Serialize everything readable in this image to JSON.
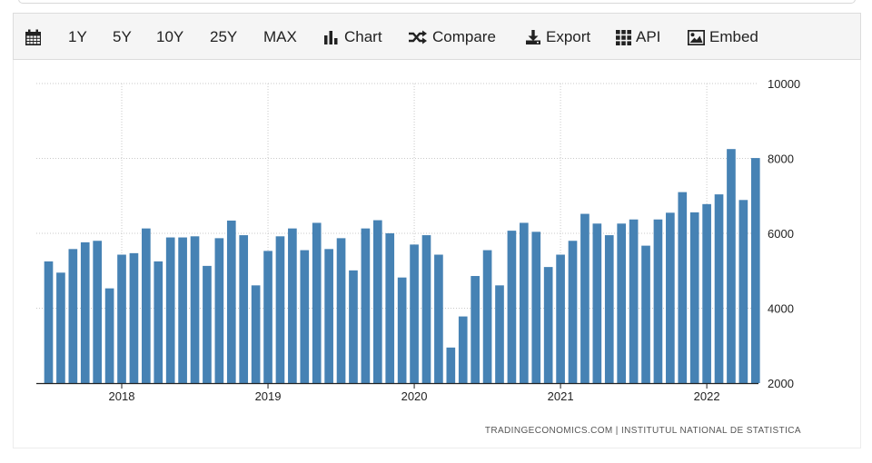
{
  "toolbar": {
    "calendar_icon": "calendar-icon",
    "ranges": [
      "1Y",
      "5Y",
      "10Y",
      "25Y",
      "MAX"
    ],
    "chart_label": "Chart",
    "compare_label": "Compare",
    "export_label": "Export",
    "api_label": "API",
    "embed_label": "Embed"
  },
  "source": {
    "text": "TRADINGECONOMICS.COM  |  INSTITUTUL NATIONAL DE STATISTICA"
  },
  "chart_data": {
    "type": "bar",
    "color": "#4682b4",
    "grid": true,
    "ylim": [
      2000,
      10000
    ],
    "yticks": [
      2000,
      4000,
      6000,
      8000,
      10000
    ],
    "xtick_labels": [
      "2018",
      "2019",
      "2020",
      "2021",
      "2022"
    ],
    "categories": [
      "2017-07",
      "2017-08",
      "2017-09",
      "2017-10",
      "2017-11",
      "2017-12",
      "2018-01",
      "2018-02",
      "2018-03",
      "2018-04",
      "2018-05",
      "2018-06",
      "2018-07",
      "2018-08",
      "2018-09",
      "2018-10",
      "2018-11",
      "2018-12",
      "2019-01",
      "2019-02",
      "2019-03",
      "2019-04",
      "2019-05",
      "2019-06",
      "2019-07",
      "2019-08",
      "2019-09",
      "2019-10",
      "2019-11",
      "2019-12",
      "2020-01",
      "2020-02",
      "2020-03",
      "2020-04",
      "2020-05",
      "2020-06",
      "2020-07",
      "2020-08",
      "2020-09",
      "2020-10",
      "2020-11",
      "2020-12",
      "2021-01",
      "2021-02",
      "2021-03",
      "2021-04",
      "2021-05",
      "2021-06",
      "2021-07",
      "2021-08",
      "2021-09",
      "2021-10",
      "2021-11",
      "2021-12",
      "2022-01",
      "2022-02",
      "2022-03",
      "2022-04",
      "2022-05"
    ],
    "values": [
      5250,
      4950,
      5580,
      5760,
      5800,
      4530,
      5430,
      5470,
      6130,
      5250,
      5890,
      5890,
      5920,
      5130,
      5870,
      6340,
      5950,
      4610,
      5530,
      5920,
      6130,
      5550,
      6280,
      5580,
      5870,
      5010,
      6130,
      6350,
      6000,
      4820,
      5700,
      5950,
      5430,
      2950,
      3780,
      4860,
      5550,
      4610,
      6070,
      6280,
      6040,
      5100,
      5430,
      5800,
      6520,
      6260,
      5950,
      6260,
      6370,
      5670,
      6370,
      6550,
      7100,
      6560,
      6780,
      7040,
      8250,
      6890,
      8010
    ]
  }
}
